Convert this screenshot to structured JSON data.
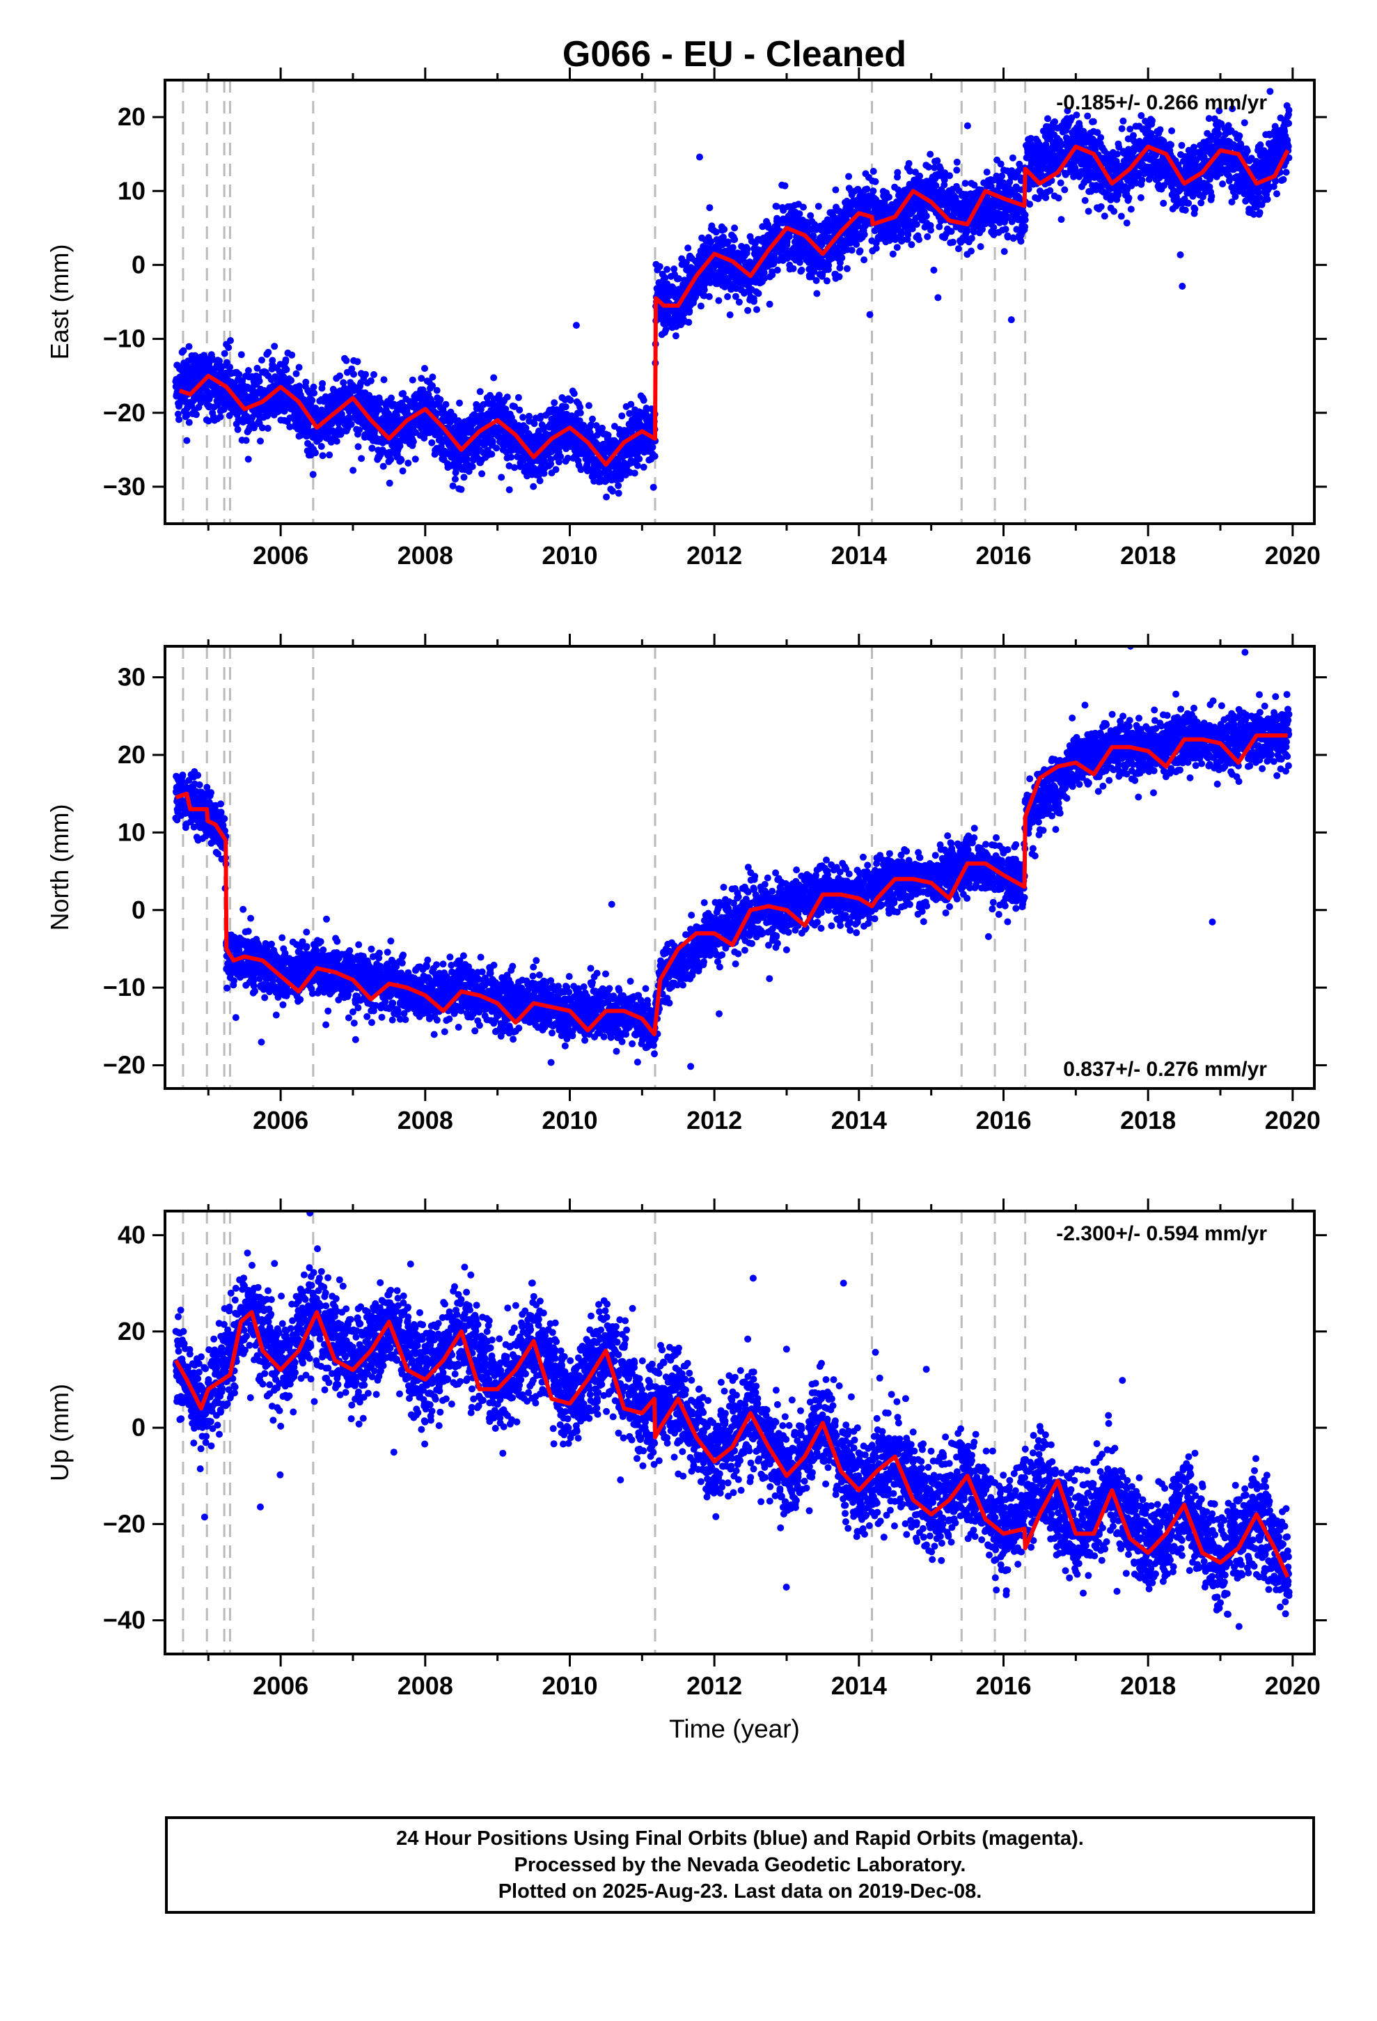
{
  "title": "G066  - EU - Cleaned",
  "xlabel": "Time (year)",
  "footer": {
    "line1": "24 Hour Positions Using Final Orbits (blue) and Rapid Orbits (magenta).",
    "line2": "Processed by the Nevada Geodetic Laboratory.",
    "line3": "Plotted on 2025-Aug-23. Last data on 2019-Dec-08."
  },
  "colors": {
    "data_points": "#0000ff",
    "model_line": "#ff0000",
    "event_lines": "#bbbbbb"
  },
  "chart_data": [
    {
      "type": "scatter",
      "name": "east",
      "ylabel": "East (mm)",
      "rate_label": "-0.185+/- 0.266 mm/yr",
      "rate_label_position": "top-right",
      "xlim": [
        2004.4,
        2020.3
      ],
      "ylim": [
        -35,
        25
      ],
      "xticks": [
        2006,
        2008,
        2010,
        2012,
        2014,
        2016,
        2018,
        2020
      ],
      "yticks": [
        -30,
        -20,
        -10,
        0,
        10,
        20
      ],
      "event_lines": [
        2004.65,
        2004.98,
        2005.22,
        2005.3,
        2006.45,
        2011.18,
        2014.18,
        2015.42,
        2015.88,
        2016.3
      ],
      "series": [
        {
          "type": "line",
          "x": [
            2004.6,
            2004.75,
            2004.9,
            2005.0,
            2005.25,
            2005.5,
            2005.75,
            2006.0,
            2006.25,
            2006.5,
            2006.75,
            2007.0,
            2007.25,
            2007.5,
            2007.75,
            2008.0,
            2008.25,
            2008.5,
            2008.75,
            2009.0,
            2009.25,
            2009.5,
            2009.75,
            2010.0,
            2010.25,
            2010.5,
            2010.75,
            2011.0,
            2011.18,
            2011.19,
            2011.3,
            2011.5,
            2011.75,
            2012.0,
            2012.25,
            2012.5,
            2012.75,
            2013.0,
            2013.25,
            2013.5,
            2013.75,
            2014.0,
            2014.18,
            2014.19,
            2014.5,
            2014.75,
            2015.0,
            2015.25,
            2015.5,
            2015.75,
            2016.0,
            2016.29,
            2016.3,
            2016.5,
            2016.75,
            2017.0,
            2017.25,
            2017.5,
            2017.75,
            2018.0,
            2018.25,
            2018.5,
            2018.75,
            2019.0,
            2019.25,
            2019.5,
            2019.75,
            2019.93
          ],
          "y": [
            -17,
            -17.5,
            -16,
            -15,
            -16.5,
            -19.5,
            -18.5,
            -16.5,
            -18.5,
            -22,
            -20,
            -18,
            -21,
            -23.5,
            -21,
            -19.5,
            -22,
            -25,
            -22.5,
            -21,
            -23,
            -26,
            -23.5,
            -22,
            -24,
            -27,
            -24,
            -22.5,
            -23.5,
            -4.5,
            -5.5,
            -5.5,
            -1.5,
            1.5,
            0.5,
            -1.5,
            2,
            5,
            4,
            1.5,
            4.5,
            7,
            6.5,
            5.5,
            6.5,
            10,
            8.5,
            6,
            5.5,
            10,
            9,
            8,
            13,
            11,
            12.5,
            16,
            15,
            11,
            13,
            16,
            15,
            11,
            12.5,
            15.5,
            15,
            11,
            12,
            15.5
          ]
        },
        {
          "type": "scatter",
          "anchors_x": [
            2004.55,
            2005.0,
            2005.25,
            2005.5,
            2006.0,
            2006.5,
            2007.0,
            2007.5,
            2008.0,
            2008.5,
            2009.0,
            2009.5,
            2010.0,
            2010.5,
            2011.0,
            2011.18,
            2011.19,
            2011.5,
            2012.0,
            2012.5,
            2013.0,
            2013.5,
            2014.0,
            2014.18,
            2014.5,
            2015.0,
            2015.5,
            2016.0,
            2016.3,
            2016.31,
            2017.0,
            2017.5,
            2018.0,
            2018.5,
            2019.0,
            2019.5,
            2019.95
          ],
          "anchors_y": [
            -17,
            -15,
            -16.5,
            -19.5,
            -16.5,
            -22,
            -18,
            -23.5,
            -19.5,
            -25,
            -21,
            -26,
            -22,
            -27,
            -22.5,
            -23.5,
            -4.5,
            -5.5,
            1.5,
            -1.5,
            5,
            1.5,
            7,
            6.5,
            6,
            10,
            6,
            9,
            8,
            13,
            16,
            11,
            16,
            11,
            15.5,
            11,
            17.5
          ],
          "noise_sd": 2.2,
          "approx_count": 5600
        }
      ]
    },
    {
      "type": "scatter",
      "name": "north",
      "ylabel": "North (mm)",
      "rate_label": "0.837+/- 0.276 mm/yr",
      "rate_label_position": "bottom-right",
      "xlim": [
        2004.4,
        2020.3
      ],
      "ylim": [
        -23,
        34
      ],
      "xticks": [
        2006,
        2008,
        2010,
        2012,
        2014,
        2016,
        2018,
        2020
      ],
      "yticks": [
        -20,
        -10,
        0,
        10,
        20,
        30
      ],
      "event_lines": [
        2004.65,
        2004.98,
        2005.22,
        2005.3,
        2006.45,
        2011.18,
        2014.18,
        2015.42,
        2015.88,
        2016.3
      ],
      "series": [
        {
          "type": "line",
          "x": [
            2004.55,
            2004.7,
            2004.75,
            2004.98,
            2004.99,
            2005.1,
            2005.24,
            2005.25,
            2005.35,
            2005.5,
            2005.75,
            2006.0,
            2006.25,
            2006.5,
            2006.75,
            2007.0,
            2007.25,
            2007.5,
            2007.75,
            2008.0,
            2008.25,
            2008.5,
            2008.75,
            2009.0,
            2009.25,
            2009.5,
            2009.75,
            2010.0,
            2010.25,
            2010.5,
            2010.75,
            2011.0,
            2011.17,
            2011.25,
            2011.5,
            2011.75,
            2012.0,
            2012.25,
            2012.5,
            2012.75,
            2013.0,
            2013.25,
            2013.5,
            2013.75,
            2014.0,
            2014.18,
            2014.25,
            2014.5,
            2014.75,
            2015.0,
            2015.25,
            2015.5,
            2015.75,
            2016.0,
            2016.29,
            2016.3,
            2016.5,
            2016.75,
            2017.0,
            2017.25,
            2017.5,
            2017.75,
            2018.0,
            2018.25,
            2018.5,
            2018.75,
            2019.0,
            2019.25,
            2019.5,
            2019.75,
            2019.93
          ],
          "y": [
            14.5,
            15,
            13,
            13,
            11.5,
            11,
            9,
            -5,
            -6.5,
            -6,
            -6.5,
            -8.5,
            -10.5,
            -7.5,
            -8,
            -9,
            -11.5,
            -9.5,
            -10,
            -11,
            -13,
            -10.5,
            -11,
            -12,
            -14.5,
            -12,
            -12.5,
            -13,
            -15.5,
            -13,
            -13,
            -14,
            -16,
            -9,
            -5,
            -3,
            -3,
            -4.5,
            0,
            0.5,
            0,
            -2,
            2,
            2,
            1.5,
            0.5,
            1.5,
            4,
            4,
            3.5,
            1.5,
            6,
            6,
            4.5,
            3,
            12,
            17,
            18.5,
            19,
            17.5,
            21,
            21,
            20.5,
            18.5,
            22,
            22,
            21.5,
            19,
            22.5,
            22.5,
            22.5
          ]
        },
        {
          "type": "scatter",
          "anchors_x": [
            2004.55,
            2004.98,
            2005.24,
            2005.25,
            2005.5,
            2006.0,
            2006.5,
            2007.0,
            2007.5,
            2008.0,
            2008.5,
            2009.0,
            2009.5,
            2010.0,
            2010.5,
            2011.0,
            2011.17,
            2011.25,
            2012.0,
            2012.5,
            2013.0,
            2013.5,
            2014.0,
            2014.5,
            2015.0,
            2015.5,
            2016.0,
            2016.29,
            2016.3,
            2017.0,
            2017.5,
            2018.0,
            2018.5,
            2019.0,
            2019.5,
            2019.95
          ],
          "anchors_y": [
            15,
            13,
            9,
            -5,
            -6,
            -8.5,
            -7.5,
            -9,
            -9.5,
            -11,
            -10.5,
            -12,
            -12,
            -13,
            -13,
            -14,
            -16,
            -9,
            -3,
            0,
            0,
            2,
            1.5,
            4,
            3.5,
            6,
            4.5,
            3,
            12,
            19,
            21,
            20.5,
            22,
            21.5,
            22.5,
            22.5
          ],
          "noise_sd": 1.8,
          "approx_count": 5600
        }
      ]
    },
    {
      "type": "scatter",
      "name": "up",
      "ylabel": "Up (mm)",
      "rate_label": "-2.300+/- 0.594 mm/yr",
      "rate_label_position": "top-right",
      "xlim": [
        2004.4,
        2020.3
      ],
      "ylim": [
        -47,
        45
      ],
      "xticks": [
        2006,
        2008,
        2010,
        2012,
        2014,
        2016,
        2018,
        2020
      ],
      "yticks": [
        -40,
        -20,
        0,
        20,
        40
      ],
      "event_lines": [
        2004.65,
        2004.98,
        2005.22,
        2005.3,
        2006.45,
        2011.18,
        2014.18,
        2015.42,
        2015.88,
        2016.3
      ],
      "series": [
        {
          "type": "line",
          "x": [
            2004.55,
            2004.7,
            2004.9,
            2005.0,
            2005.2,
            2005.3,
            2005.45,
            2005.6,
            2005.75,
            2006.0,
            2006.25,
            2006.5,
            2006.75,
            2007.0,
            2007.25,
            2007.5,
            2007.75,
            2008.0,
            2008.25,
            2008.5,
            2008.75,
            2009.0,
            2009.25,
            2009.5,
            2009.75,
            2010.0,
            2010.25,
            2010.5,
            2010.75,
            2011.0,
            2011.17,
            2011.18,
            2011.25,
            2011.5,
            2011.75,
            2012.0,
            2012.25,
            2012.5,
            2012.75,
            2013.0,
            2013.25,
            2013.5,
            2013.75,
            2014.0,
            2014.25,
            2014.5,
            2014.75,
            2015.0,
            2015.25,
            2015.5,
            2015.75,
            2016.0,
            2016.29,
            2016.3,
            2016.5,
            2016.75,
            2017.0,
            2017.25,
            2017.5,
            2017.75,
            2018.0,
            2018.25,
            2018.5,
            2018.75,
            2019.0,
            2019.25,
            2019.5,
            2019.75,
            2019.93
          ],
          "y": [
            14,
            10,
            4,
            8,
            10,
            11,
            22,
            24,
            16,
            12,
            16,
            24,
            14,
            12,
            16,
            22,
            12,
            10,
            14,
            20,
            8,
            8,
            12,
            18,
            6,
            5,
            10,
            16,
            4,
            3,
            6,
            -2,
            0,
            6,
            -2,
            -7,
            -4,
            3,
            -4,
            -10,
            -6,
            1,
            -9,
            -13,
            -9,
            -6,
            -15,
            -18,
            -15,
            -10,
            -19,
            -22,
            -21,
            -25,
            -18,
            -11,
            -22,
            -22,
            -13,
            -23,
            -26,
            -22,
            -16,
            -26,
            -28,
            -25,
            -18,
            -25,
            -31
          ]
        },
        {
          "type": "scatter",
          "anchors_x": [
            2004.55,
            2004.9,
            2005.2,
            2005.45,
            2005.6,
            2006.0,
            2006.5,
            2007.0,
            2007.5,
            2008.0,
            2008.5,
            2009.0,
            2009.5,
            2010.0,
            2010.5,
            2011.0,
            2011.5,
            2012.0,
            2012.5,
            2013.0,
            2013.5,
            2014.0,
            2014.5,
            2015.0,
            2015.5,
            2016.0,
            2016.5,
            2017.0,
            2017.5,
            2018.0,
            2018.5,
            2019.0,
            2019.5,
            2019.95
          ],
          "anchors_y": [
            14,
            4,
            10,
            22,
            24,
            12,
            24,
            12,
            22,
            10,
            20,
            8,
            18,
            5,
            16,
            3,
            6,
            -7,
            3,
            -10,
            1,
            -13,
            -6,
            -18,
            -10,
            -22,
            -11,
            -22,
            -13,
            -26,
            -16,
            -28,
            -18,
            -31
          ],
          "noise_sd": 5.0,
          "approx_count": 5600
        }
      ]
    }
  ]
}
